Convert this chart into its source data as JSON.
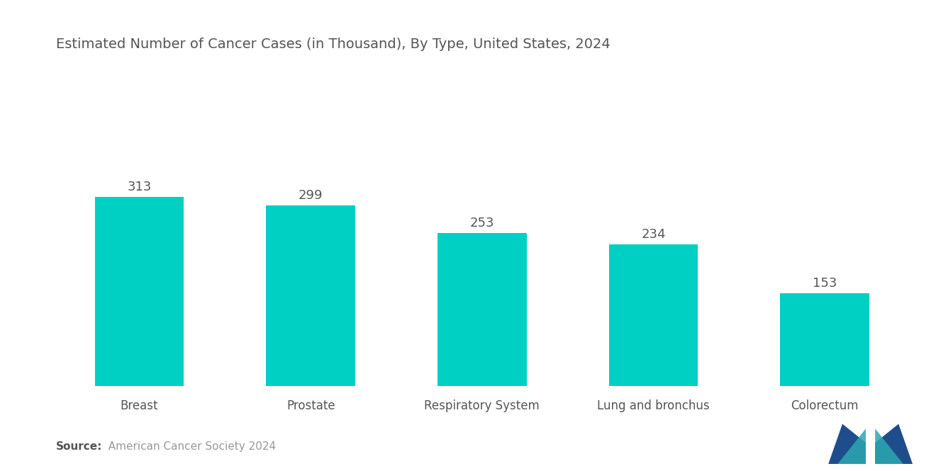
{
  "title": "Estimated Number of Cancer Cases (in Thousand), By Type, United States, 2024",
  "categories": [
    "Breast",
    "Prostate",
    "Respiratory System",
    "Lung and bronchus",
    "Colorectum"
  ],
  "values": [
    313,
    299,
    253,
    234,
    153
  ],
  "bar_color": "#00D0C4",
  "value_labels": [
    "313",
    "299",
    "253",
    "234",
    "153"
  ],
  "value_label_color": "#555555",
  "value_label_fontsize": 13,
  "xlabel_fontsize": 12,
  "title_fontsize": 14,
  "title_color": "#555555",
  "xlabel_color": "#555555",
  "background_color": "#ffffff",
  "source_bold": "Source:",
  "source_text": "  American Cancer Society 2024",
  "source_fontsize": 11,
  "source_color_bold": "#555555",
  "source_color_text": "#999999",
  "ylim": [
    0,
    420
  ],
  "bar_width": 0.52,
  "logo_navy": "#1e4d8c",
  "logo_teal": "#2ba8b0"
}
